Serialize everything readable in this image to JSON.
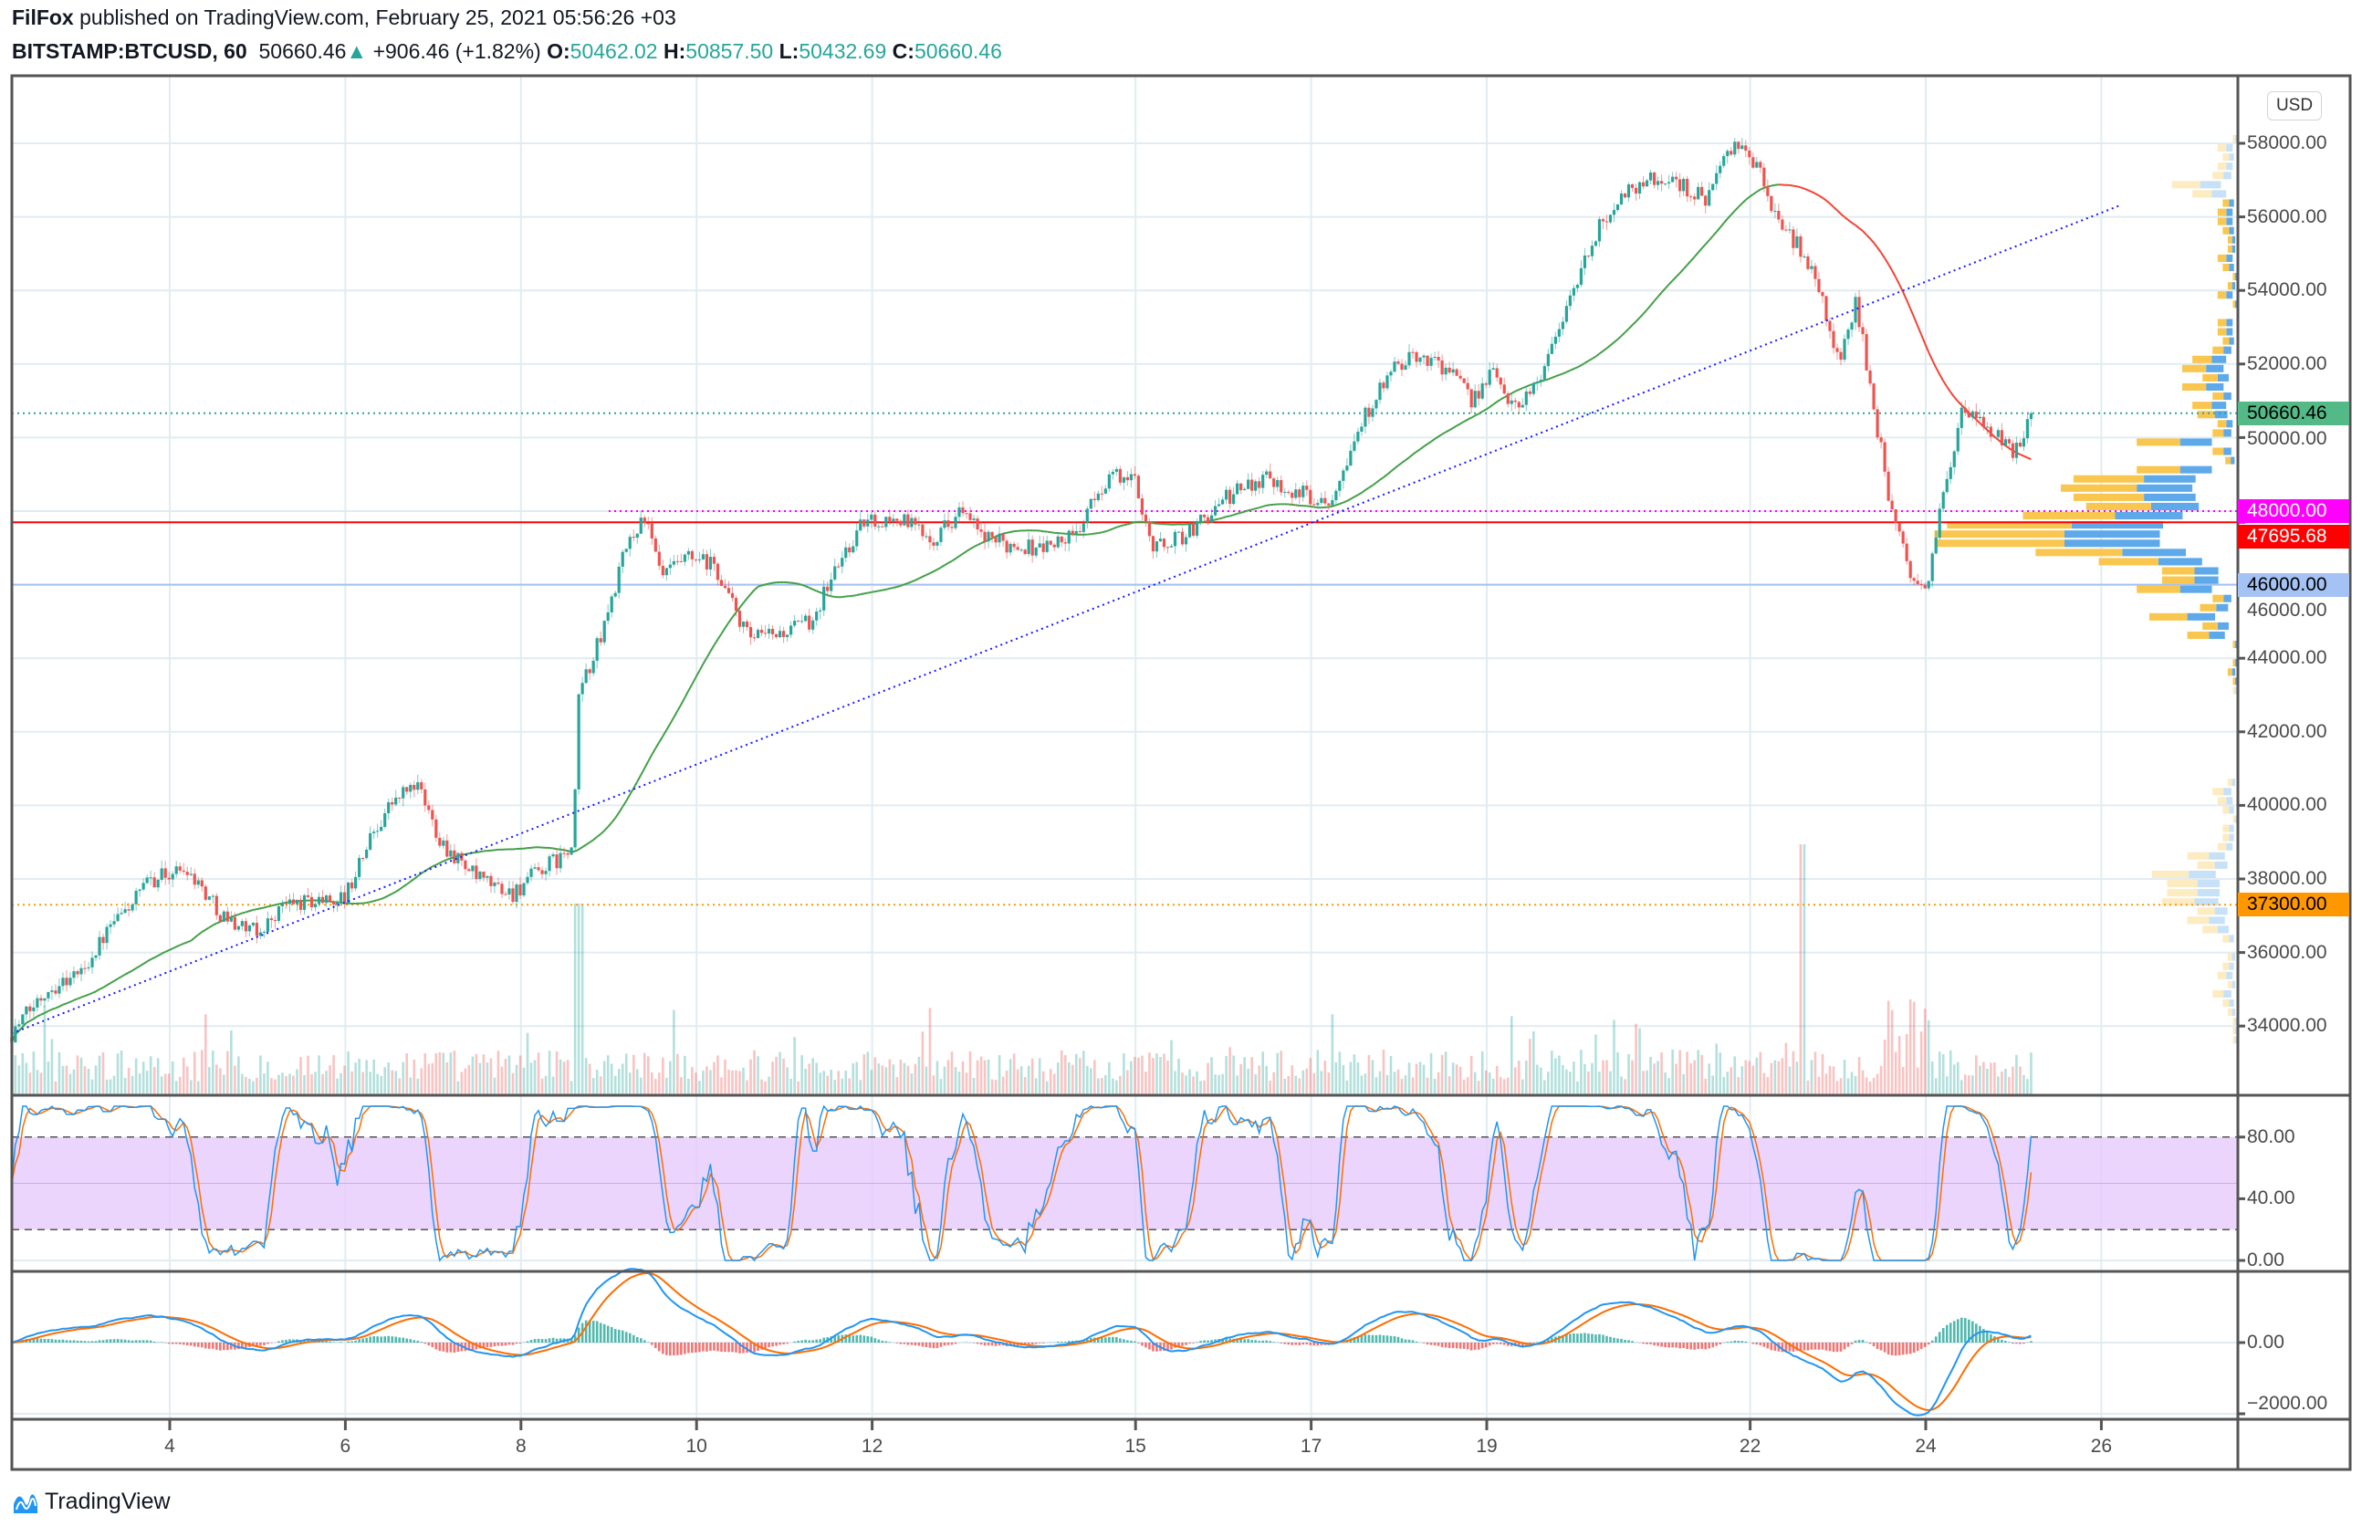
{
  "header": {
    "author": "FilFox",
    "published": "published on TradingView.com, February 25, 2021 05:56:26 +03",
    "symbol": "BITSTAMP:BTCUSD, 60",
    "last": "50660.46",
    "change": "+906.46 (+1.82%)",
    "o_label": "O:",
    "o": "50462.02",
    "h_label": "H:",
    "h": "50857.50",
    "l_label": "L:",
    "l": "50432.69",
    "c_label": "C:",
    "c": "50660.46"
  },
  "currency_button": "USD",
  "colors": {
    "up": "#26a69a",
    "down": "#ef5350",
    "ma": "#43a047",
    "ma_down": "#f44336",
    "trend": "#1a1aff",
    "stoch_band": "#e7cbfb",
    "k": "#2196f3",
    "d": "#ff6d00"
  },
  "price_axis": [
    "58000.00",
    "56000.00",
    "54000.00",
    "52000.00",
    "50000.00",
    "46000.00",
    "44000.00",
    "42000.00",
    "40000.00",
    "38000.00",
    "36000.00",
    "34000.00"
  ],
  "badges": [
    {
      "label": "50660.46",
      "price": 50660.46,
      "bg": "#53b987",
      "fg": "#000000",
      "line": "dotted"
    },
    {
      "label": "48000.00",
      "price": 48000,
      "bg": "#ff00ff",
      "fg": "#ffffff",
      "line": "dotted"
    },
    {
      "label": "47695.68",
      "price": 47695.68,
      "bg": "#ff0000",
      "fg": "#ffffff",
      "line": "solid"
    },
    {
      "label": "46000.00",
      "price": 46000,
      "bg": "#a4c2f4",
      "fg": "#000000",
      "line": "solid"
    },
    {
      "label": "37300.00",
      "price": 37300,
      "bg": "#ff9800",
      "fg": "#000000",
      "line": "dotted"
    }
  ],
  "stoch_axis": [
    "80.00",
    "40.00",
    "0.00"
  ],
  "macd_axis": [
    "0.00",
    "−2000.00"
  ],
  "time_axis": [
    "4",
    "6",
    "8",
    "10",
    "12",
    "15",
    "17",
    "19",
    "22",
    "24",
    "26"
  ],
  "brand": "TradingView",
  "chart_data": {
    "type": "candlestick",
    "title": "BITSTAMP:BTCUSD, 60",
    "interval": "60",
    "ylim": [
      33000,
      59500
    ],
    "x_unit": "day of February 2021",
    "xlim": [
      2.2,
      27.8
    ],
    "price_path": [
      [
        2.2,
        33800
      ],
      [
        2.6,
        35000
      ],
      [
        3.0,
        35500
      ],
      [
        3.3,
        36600
      ],
      [
        3.8,
        38000
      ],
      [
        4.2,
        38300
      ],
      [
        4.6,
        37000
      ],
      [
        5.0,
        36500
      ],
      [
        5.3,
        37300
      ],
      [
        6.0,
        37500
      ],
      [
        6.3,
        39200
      ],
      [
        6.5,
        40000
      ],
      [
        6.8,
        40600
      ],
      [
        7.1,
        39000
      ],
      [
        7.5,
        38000
      ],
      [
        7.9,
        37600
      ],
      [
        8.2,
        38200
      ],
      [
        8.6,
        38800
      ],
      [
        8.65,
        43000
      ],
      [
        8.9,
        44500
      ],
      [
        9.2,
        47000
      ],
      [
        9.4,
        47900
      ],
      [
        9.6,
        46200
      ],
      [
        9.9,
        46700
      ],
      [
        10.2,
        46500
      ],
      [
        10.6,
        44500
      ],
      [
        11.0,
        44700
      ],
      [
        11.3,
        45000
      ],
      [
        11.6,
        46500
      ],
      [
        11.9,
        47700
      ],
      [
        12.3,
        47800
      ],
      [
        12.7,
        47300
      ],
      [
        13.0,
        48000
      ],
      [
        13.3,
        47200
      ],
      [
        13.9,
        47000
      ],
      [
        14.3,
        47300
      ],
      [
        14.7,
        49000
      ],
      [
        15.0,
        48800
      ],
      [
        15.2,
        47000
      ],
      [
        15.6,
        47400
      ],
      [
        16.0,
        48300
      ],
      [
        16.5,
        49000
      ],
      [
        16.8,
        48500
      ],
      [
        17.2,
        48300
      ],
      [
        17.5,
        50000
      ],
      [
        17.7,
        51000
      ],
      [
        18.0,
        52000
      ],
      [
        18.3,
        52200
      ],
      [
        18.6,
        51800
      ],
      [
        18.8,
        51000
      ],
      [
        19.1,
        51800
      ],
      [
        19.3,
        50800
      ],
      [
        19.6,
        51600
      ],
      [
        19.9,
        53500
      ],
      [
        20.3,
        55800
      ],
      [
        20.5,
        56500
      ],
      [
        20.8,
        57000
      ],
      [
        21.1,
        57000
      ],
      [
        21.5,
        56500
      ],
      [
        21.7,
        57500
      ],
      [
        21.9,
        58000
      ],
      [
        22.1,
        57200
      ],
      [
        22.3,
        56000
      ],
      [
        22.6,
        55000
      ],
      [
        22.8,
        54000
      ],
      [
        23.0,
        52000
      ],
      [
        23.2,
        53700
      ],
      [
        23.4,
        51000
      ],
      [
        23.6,
        48000
      ],
      [
        23.8,
        46500
      ],
      [
        24.0,
        45700
      ],
      [
        24.2,
        48500
      ],
      [
        24.4,
        50600
      ],
      [
        24.7,
        50300
      ],
      [
        25.0,
        49500
      ],
      [
        25.2,
        50660
      ]
    ],
    "horizontal_levels": [
      50660.46,
      48000,
      47695.68,
      46000,
      37300
    ],
    "trendline": [
      [
        2.2,
        33800
      ],
      [
        26.2,
        56300
      ]
    ],
    "indicators": [
      "Volume",
      "Moving Average",
      "Volume Profile",
      "Stochastic RSI (80/20 band)",
      "MACD"
    ],
    "stoch_ylim": [
      0,
      100
    ],
    "macd_ylim": [
      -2200,
      2000
    ]
  }
}
